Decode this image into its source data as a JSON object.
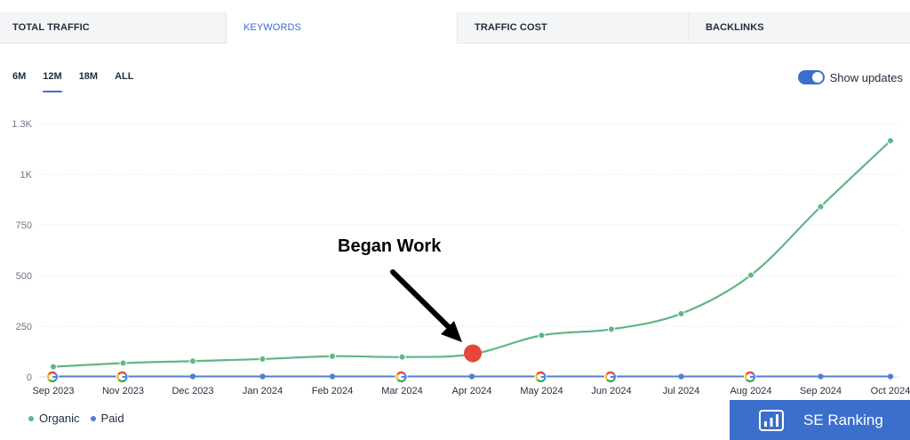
{
  "tabs": [
    "TOTAL TRAFFIC",
    "KEYWORDS",
    "TRAFFIC COST",
    "BACKLINKS"
  ],
  "active_tab": "KEYWORDS",
  "ranges": [
    "6M",
    "12M",
    "18M",
    "ALL"
  ],
  "active_range": "12M",
  "show_updates": {
    "label": "Show updates",
    "enabled": true
  },
  "annotation": {
    "text": "Began Work",
    "at": "Apr 2024"
  },
  "legend": [
    {
      "label": "Organic",
      "color": "#5fb685"
    },
    {
      "label": "Paid",
      "color": "#4f7fd8"
    }
  ],
  "brand": {
    "name": "SE Ranking"
  },
  "colors": {
    "accent": "#3a6fcb",
    "organic": "#5fb685",
    "paid": "#4f7fd8",
    "marker": "#e8453c"
  },
  "icons": {
    "google_update": "google-g-icon",
    "brand_logo": "bar-chart-icon"
  },
  "chart_data": {
    "type": "line",
    "categories": [
      "Sep 2023",
      "Nov 2023",
      "Dec 2023",
      "Jan 2024",
      "Feb 2024",
      "Mar 2024",
      "Apr 2024",
      "May 2024",
      "Jun 2024",
      "Jul 2024",
      "Aug 2024",
      "Sep 2024",
      "Oct 2024"
    ],
    "y_ticks": [
      "0",
      "250",
      "500",
      "750",
      "1K",
      "1.3K"
    ],
    "ylim": [
      0,
      1250
    ],
    "series": [
      {
        "name": "Organic",
        "values": [
          50,
          68,
          78,
          88,
          102,
          98,
          112,
          205,
          235,
          312,
          502,
          840,
          1165
        ]
      },
      {
        "name": "Paid",
        "values": [
          2,
          2,
          2,
          2,
          2,
          2,
          2,
          2,
          2,
          2,
          2,
          2,
          2
        ]
      }
    ],
    "google_updates": [
      "Sep 2023",
      "Nov 2023",
      "Mar 2024",
      "May 2024",
      "Jun 2024",
      "Aug 2024"
    ],
    "highlight": {
      "category": "Apr 2024",
      "series": "Organic"
    },
    "grid": true,
    "legend_position": "bottom-left"
  }
}
